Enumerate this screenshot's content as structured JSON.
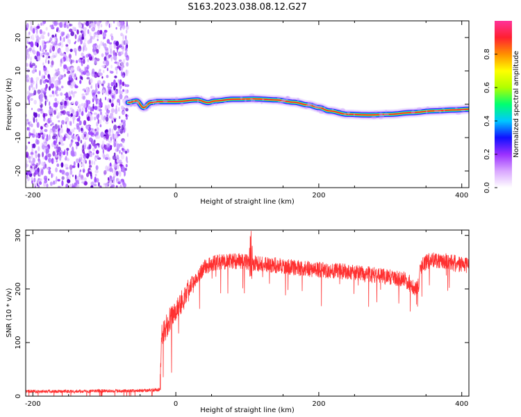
{
  "title": "S163.2023.038.08.12.G27",
  "chart_data": [
    {
      "type": "heatmap",
      "xlabel": "Height of straight line (km)",
      "ylabel": "Frequency (Hz)",
      "xlim": [
        -210,
        410
      ],
      "ylim": [
        -25,
        25
      ],
      "x_ticks": [
        -200,
        0,
        200,
        400
      ],
      "y_ticks": [
        -20,
        -10,
        0,
        10,
        20
      ],
      "colorbar": {
        "label": "Normalized spectral amplitude",
        "range": [
          0,
          1
        ],
        "ticks": [
          0.0,
          0.2,
          0.4,
          0.6,
          0.8
        ],
        "colors": [
          "#ffffff",
          "#d9a6ff",
          "#9b30ff",
          "#1010ff",
          "#00c8ff",
          "#00ff70",
          "#b0ff00",
          "#ffff00",
          "#ff9000",
          "#ff2030",
          "#ff3399"
        ]
      },
      "noise_region_x": [
        -210,
        -67
      ],
      "ridge": {
        "x": [
          -67,
          -55,
          -45,
          -35,
          -25,
          0,
          30,
          45,
          55,
          80,
          110,
          140,
          165,
          185,
          200,
          215,
          240,
          270,
          300,
          330,
          360,
          390,
          410
        ],
        "y": [
          0.5,
          1.0,
          -1.0,
          0.5,
          0.8,
          0.8,
          1.3,
          0.5,
          1.0,
          1.5,
          1.6,
          1.3,
          0.6,
          -0.2,
          -1.0,
          -2.0,
          -3.0,
          -3.2,
          -3.0,
          -2.5,
          -2.0,
          -1.7,
          -1.5
        ]
      }
    },
    {
      "type": "line",
      "xlabel": "Height of straight line (km)",
      "ylabel": "SNR (10 * v/v)",
      "xlim": [
        -210,
        410
      ],
      "ylim": [
        0,
        310
      ],
      "x_ticks": [
        -200,
        0,
        200,
        400
      ],
      "y_ticks": [
        0,
        100,
        200,
        300
      ],
      "color": "#ff3030",
      "series": [
        {
          "x": [
            -210,
            -150,
            -100,
            -50,
            -22,
            -20,
            -15,
            -10,
            -5,
            0,
            10,
            20,
            30,
            40,
            50,
            60,
            70,
            80,
            90,
            100,
            110,
            120,
            140,
            160,
            180,
            200,
            220,
            240,
            260,
            280,
            300,
            320,
            335,
            340,
            342,
            350,
            360,
            370,
            380,
            390,
            400,
            410
          ],
          "y": [
            9,
            9,
            10,
            10,
            12,
            110,
            125,
            140,
            150,
            160,
            180,
            205,
            225,
            240,
            247,
            250,
            251,
            252,
            252,
            250,
            248,
            247,
            244,
            241,
            238,
            236,
            234,
            232,
            229,
            226,
            222,
            218,
            202,
            205,
            240,
            250,
            255,
            253,
            251,
            249,
            246,
            242
          ]
        }
      ]
    }
  ]
}
